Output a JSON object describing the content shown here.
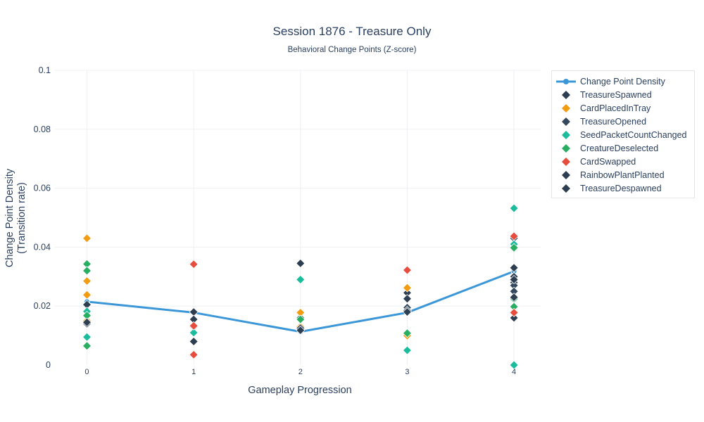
{
  "chart_data": {
    "type": "scatter",
    "title": "Session 1876 - Treasure Only",
    "subtitle": "Behavioral Change Points (Z-score)",
    "xlabel": "Gameplay Progression",
    "ylabel_line1": "Change Point Density",
    "ylabel_line2": "(Transition rate)",
    "xlim": [
      -0.3,
      4.25
    ],
    "ylim": [
      0,
      0.1
    ],
    "x_ticks": [
      0,
      1,
      2,
      3,
      4
    ],
    "x_tick_labels": [
      "0",
      "1",
      "2",
      "3",
      "4"
    ],
    "y_ticks": [
      0,
      0.02,
      0.04,
      0.06,
      0.08,
      0.1
    ],
    "y_tick_labels": [
      "0",
      "0.02",
      "0.04",
      "0.06",
      "0.08",
      "0.1"
    ],
    "grid": true,
    "legend_position": "top-right",
    "line_series": {
      "name": "Change Point Density",
      "color": "#3b97d8",
      "x": [
        0,
        1,
        2,
        3,
        4
      ],
      "y": [
        0.0215,
        0.0178,
        0.0113,
        0.0178,
        0.0318
      ]
    },
    "marker_series": [
      {
        "name": "TreasureSpawned",
        "color": "#2c3e50",
        "points": [
          [
            0,
            0.0205
          ],
          [
            0,
            0.014
          ],
          [
            1,
            0.018
          ],
          [
            1,
            0.0155
          ],
          [
            1,
            0.008
          ],
          [
            2,
            0.0345
          ],
          [
            2,
            0.016
          ],
          [
            3,
            0.0245
          ],
          [
            3,
            0.0225
          ],
          [
            4,
            0.033
          ],
          [
            4,
            0.028
          ],
          [
            4,
            0.016
          ]
        ]
      },
      {
        "name": "CardPlacedInTray",
        "color": "#f39c12",
        "points": [
          [
            0,
            0.043
          ],
          [
            0,
            0.0285
          ],
          [
            0,
            0.0238
          ],
          [
            0,
            0.015
          ],
          [
            2,
            0.0178
          ],
          [
            2,
            0.013
          ],
          [
            3,
            0.0262
          ],
          [
            3,
            0.01
          ]
        ]
      },
      {
        "name": "TreasureOpened",
        "color": "#34495e",
        "points": [
          [
            0,
            0.014
          ],
          [
            1,
            0.013
          ],
          [
            2,
            0.012
          ],
          [
            3,
            0.0195
          ],
          [
            4,
            0.043
          ],
          [
            4,
            0.027
          ],
          [
            4,
            0.025
          ]
        ]
      },
      {
        "name": "SeedPacketCountChanged",
        "color": "#1abc9c",
        "points": [
          [
            0,
            0.0182
          ],
          [
            0,
            0.0095
          ],
          [
            1,
            0.011
          ],
          [
            2,
            0.029
          ],
          [
            3,
            0.005
          ],
          [
            4,
            0.0532
          ],
          [
            4,
            0.041
          ],
          [
            4,
            0.0
          ]
        ]
      },
      {
        "name": "CreatureDeselected",
        "color": "#27ae60",
        "points": [
          [
            0,
            0.0343
          ],
          [
            0,
            0.032
          ],
          [
            0,
            0.0168
          ],
          [
            0,
            0.0065
          ],
          [
            2,
            0.0155
          ],
          [
            3,
            0.0108
          ],
          [
            4,
            0.0398
          ],
          [
            4,
            0.03
          ],
          [
            4,
            0.0225
          ],
          [
            4,
            0.0198
          ]
        ]
      },
      {
        "name": "CardSwapped",
        "color": "#e74c3c",
        "points": [
          [
            1,
            0.0342
          ],
          [
            1,
            0.0133
          ],
          [
            1,
            0.0035
          ],
          [
            3,
            0.0322
          ],
          [
            4,
            0.0437
          ],
          [
            4,
            0.0178
          ]
        ]
      },
      {
        "name": "RainbowPlantPlanted",
        "color": "#2c3e50",
        "points": [
          [
            0,
            0.0145
          ],
          [
            2,
            0.0125
          ],
          [
            3,
            0.0185
          ],
          [
            4,
            0.03
          ]
        ]
      },
      {
        "name": "TreasureDespawned",
        "color": "#2c3e50",
        "points": [
          [
            1,
            0.008
          ],
          [
            2,
            0.0118
          ],
          [
            3,
            0.018
          ],
          [
            4,
            0.029
          ],
          [
            4,
            0.023
          ]
        ]
      }
    ]
  }
}
